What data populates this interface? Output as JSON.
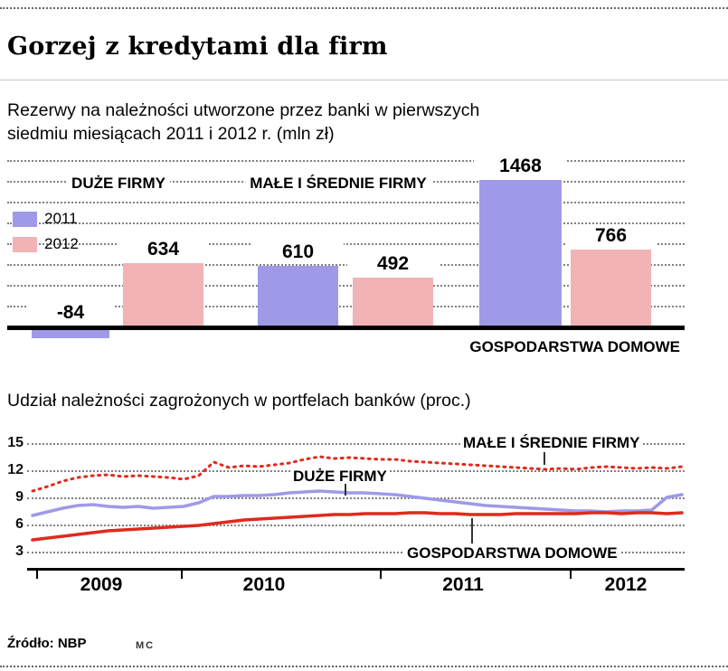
{
  "header": {
    "title": "Gorzej z kredytami dla firm"
  },
  "footer": {
    "source": "Źródło: NBP",
    "credit": "MC"
  },
  "chart_data": [
    {
      "type": "bar",
      "title": "Rezerwy na należności utworzone przez banki w pierwszych siedmiu miesiącach 2011 i 2012 r. (mln zł)",
      "categories": [
        "DUŻE FIRMY",
        "MAŁE I ŚREDNIE FIRMY",
        "GOSPODARSTWA DOMOWE"
      ],
      "series": [
        {
          "name": "2011",
          "color": "#9e9ae8",
          "values": [
            -84,
            610,
            1468
          ]
        },
        {
          "name": "2012",
          "color": "#f2b3b6",
          "values": [
            634,
            492,
            766
          ]
        }
      ],
      "grid": "dotted-horizontal",
      "legend_position": "left",
      "ylim": [
        -200,
        1600
      ]
    },
    {
      "type": "line",
      "title": "Udział należności zagrożonych w portfelach banków (proc.)",
      "yticks": [
        15,
        12,
        9,
        6,
        3
      ],
      "ylim": [
        3,
        15
      ],
      "xticks": [
        "2009",
        "2010",
        "2011",
        "2012"
      ],
      "grid": "dotted-horizontal",
      "series": [
        {
          "name": "MAŁE I ŚREDNIE FIRMY",
          "color": "#e02a1e",
          "style": "dotted",
          "values": [
            9.7,
            10.2,
            10.8,
            11.2,
            11.4,
            11.5,
            11.3,
            11.4,
            11.3,
            11.2,
            11.0,
            11.4,
            12.9,
            12.3,
            12.5,
            12.4,
            12.6,
            12.8,
            13.2,
            13.5,
            13.3,
            13.4,
            13.3,
            13.2,
            13.2,
            13.0,
            12.9,
            12.8,
            12.7,
            12.6,
            12.5,
            12.4,
            12.3,
            12.2,
            12.1,
            12.2,
            12.1,
            12.3,
            12.4,
            12.3,
            12.2,
            12.3,
            12.2,
            12.4
          ]
        },
        {
          "name": "DUŻE FIRMY",
          "color": "#9e9ae8",
          "style": "solid",
          "values": [
            7.0,
            7.4,
            7.8,
            8.1,
            8.2,
            8.0,
            7.9,
            8.0,
            7.8,
            7.9,
            8.0,
            8.4,
            9.1,
            9.1,
            9.2,
            9.2,
            9.3,
            9.5,
            9.6,
            9.7,
            9.6,
            9.5,
            9.5,
            9.4,
            9.3,
            9.1,
            8.9,
            8.7,
            8.5,
            8.3,
            8.1,
            8.0,
            7.9,
            7.8,
            7.7,
            7.6,
            7.5,
            7.5,
            7.4,
            7.5,
            7.5,
            7.6,
            9.0,
            9.3
          ]
        },
        {
          "name": "GOSPODARSTWA DOMOWE",
          "color": "#e02a1e",
          "style": "solid",
          "values": [
            4.3,
            4.5,
            4.7,
            4.9,
            5.1,
            5.3,
            5.4,
            5.5,
            5.6,
            5.7,
            5.8,
            5.9,
            6.1,
            6.3,
            6.5,
            6.6,
            6.7,
            6.8,
            6.9,
            7.0,
            7.1,
            7.1,
            7.2,
            7.2,
            7.2,
            7.3,
            7.3,
            7.2,
            7.2,
            7.1,
            7.1,
            7.1,
            7.2,
            7.2,
            7.2,
            7.2,
            7.2,
            7.3,
            7.3,
            7.2,
            7.3,
            7.3,
            7.2,
            7.3
          ]
        }
      ]
    }
  ]
}
